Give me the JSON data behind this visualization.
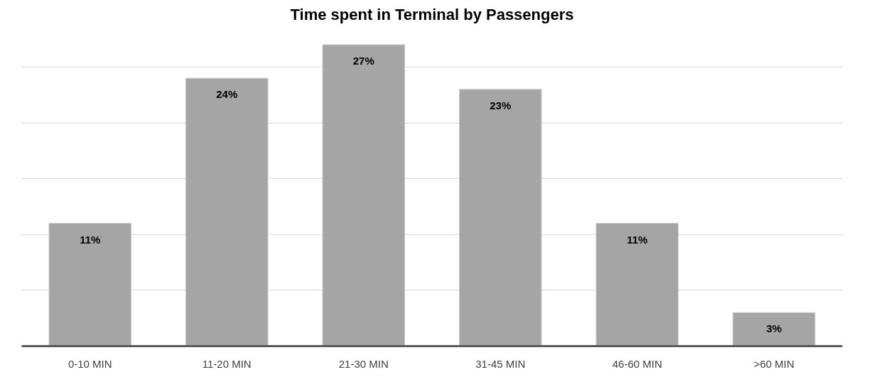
{
  "chart_data": {
    "type": "bar",
    "title": "Time spent in Terminal by Passengers",
    "categories": [
      "0-10 MIN",
      "11-20 MIN",
      "21-30 MIN",
      "31-45 MIN",
      "46-60 MIN",
      ">60 MIN"
    ],
    "values": [
      11,
      24,
      27,
      23,
      11,
      3
    ],
    "color": "#a5a5a5",
    "data_labels": true,
    "value_labels": [
      "11%",
      "24%",
      "27%",
      "23%",
      "11%",
      "3%"
    ],
    "yticks": [
      {
        "value": 0,
        "label": null
      },
      {
        "value": 5,
        "label": null
      },
      {
        "value": 10,
        "label": null
      },
      {
        "value": 15,
        "label": null
      },
      {
        "value": 20,
        "label": null
      },
      {
        "value": 25,
        "label": null
      }
    ],
    "grid": "y"
  }
}
